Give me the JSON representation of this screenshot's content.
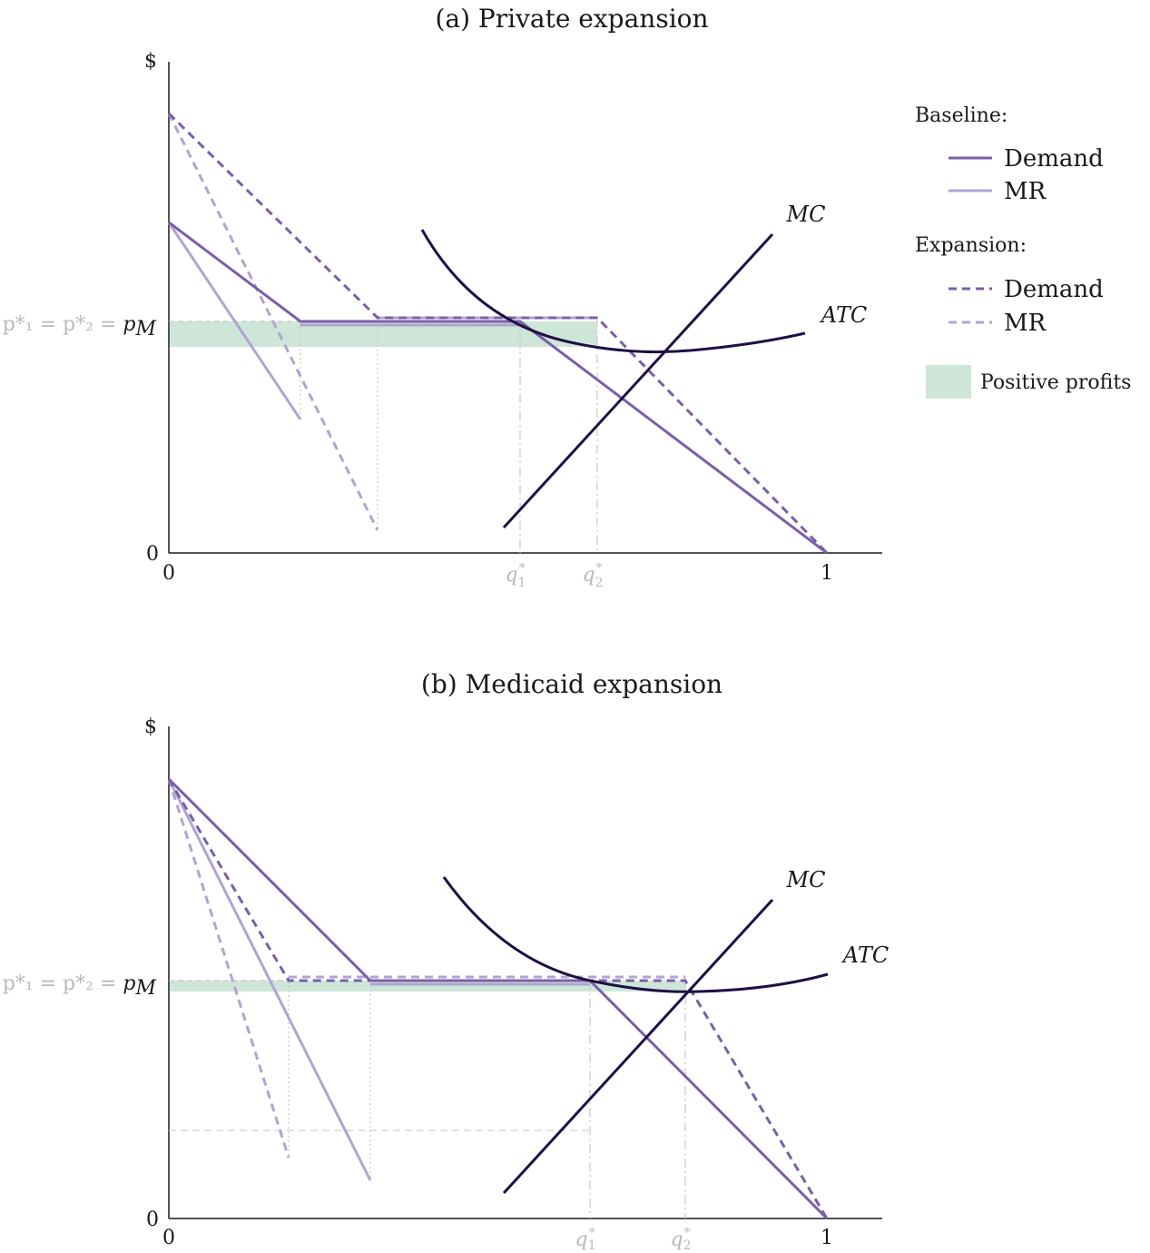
{
  "colors": {
    "demand": "#7a5fa8",
    "mr": "#b0a4d4",
    "cost": "#1f0f45",
    "profit": "#cde6d8",
    "guide": "#c8c8c8"
  },
  "panel_a": {
    "title": "(a) Private expansion",
    "y_axis_symbol": "$",
    "origin_y": "0",
    "origin_x": "0",
    "x_end": "1",
    "price_label": {
      "gray": "p*₁ = p*₂ = ",
      "main": "p",
      "sub": "M"
    },
    "q1": {
      "main": "q",
      "sub": "1",
      "sup": "*"
    },
    "q2": {
      "main": "q",
      "sub": "2",
      "sup": "*"
    },
    "mc_label": "MC",
    "atc_label": "ATC"
  },
  "panel_b": {
    "title": "(b) Medicaid expansion",
    "y_axis_symbol": "$",
    "origin_y": "0",
    "origin_x": "0",
    "x_end": "1",
    "price_label": {
      "gray": "p*₁ = p*₂ = ",
      "main": "p",
      "sub": "M"
    },
    "q1": {
      "main": "q",
      "sub": "1",
      "sup": "*"
    },
    "q2": {
      "main": "q",
      "sub": "2",
      "sup": "*"
    },
    "mc_label": "MC",
    "atc_label": "ATC"
  },
  "legend": {
    "baseline_header": "Baseline:",
    "expansion_header": "Expansion:",
    "baseline_items": [
      {
        "label": "Demand",
        "icon": "solid-demand"
      },
      {
        "label": "MR",
        "icon": "solid-mr"
      }
    ],
    "expansion_items": [
      {
        "label": "Demand",
        "icon": "dashed-demand"
      },
      {
        "label": "MR",
        "icon": "dashed-mr"
      }
    ],
    "profits_label": "Positive profits"
  }
}
